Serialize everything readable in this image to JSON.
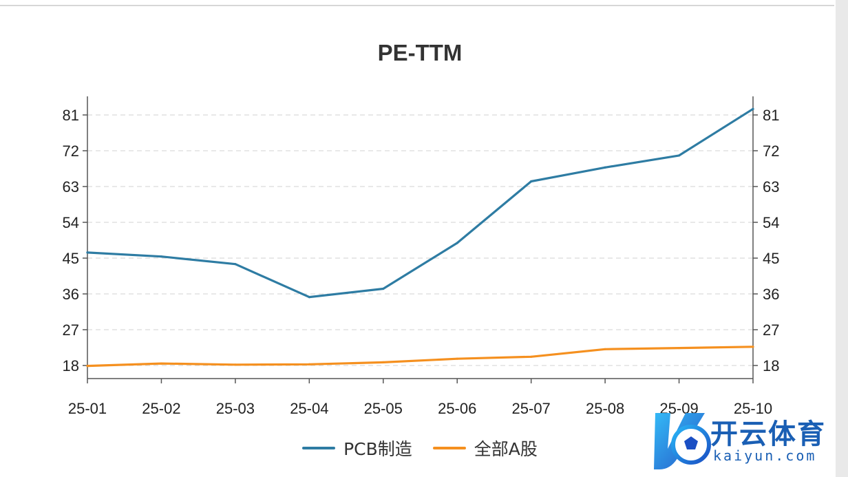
{
  "chart_data": {
    "type": "line",
    "title": "PE-TTM",
    "categories": [
      "25-01",
      "25-02",
      "25-03",
      "25-04",
      "25-05",
      "25-06",
      "25-07",
      "25-08",
      "25-09",
      "25-10"
    ],
    "series": [
      {
        "name": "PCB制造",
        "color": "#2e7ca3",
        "values": [
          46.4,
          45.4,
          43.5,
          35.2,
          37.3,
          48.8,
          64.3,
          67.8,
          70.8,
          82.5
        ]
      },
      {
        "name": "全部A股",
        "color": "#f5901f",
        "values": [
          17.9,
          18.5,
          18.2,
          18.3,
          18.8,
          19.7,
          20.2,
          22.1,
          22.4,
          22.7
        ]
      }
    ],
    "yticks": [
      18,
      27,
      36,
      45,
      54,
      63,
      72,
      81
    ],
    "ylim": [
      15,
      87
    ],
    "grid": true,
    "legend_position": "bottom"
  },
  "watermark": {
    "cn": "开云体育",
    "en": "kaiyun.com"
  }
}
